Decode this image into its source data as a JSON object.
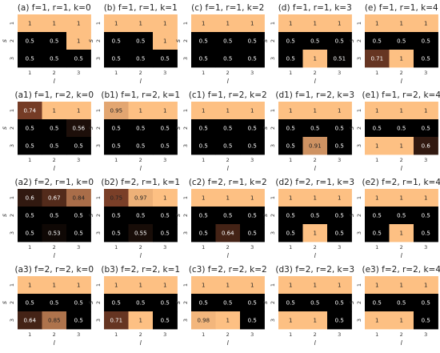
{
  "chart_data": {
    "type": "heatmap",
    "row_ticks": [
      "1",
      "2",
      "3"
    ],
    "col_ticks": [
      "1",
      "2",
      "3"
    ],
    "xlabel": "l",
    "ylabel": "s",
    "value_range": [
      0,
      1
    ],
    "colors": {
      "low": "#000000",
      "mid": "#7a3f28",
      "high": "#fdc083"
    },
    "panels": [
      {
        "title": "(a) f=1, r=1, k=0",
        "grid": [
          [
            "1",
            "1",
            "1"
          ],
          [
            "0.5",
            "0.5",
            "1"
          ],
          [
            "0.5",
            "0.5",
            "0.5"
          ]
        ]
      },
      {
        "title": "(b) f=1, r=1, k=1",
        "grid": [
          [
            "1",
            "1",
            "1"
          ],
          [
            "0.5",
            "0.5",
            "1"
          ],
          [
            "0.5",
            "0.5",
            "0.5"
          ]
        ]
      },
      {
        "title": "(c) f=1, r=1, k=2",
        "grid": [
          [
            "1",
            "1",
            "1"
          ],
          [
            "0.5",
            "0.5",
            "0.5"
          ],
          [
            "0.5",
            "0.5",
            "0.5"
          ]
        ]
      },
      {
        "title": "(d) f=1, r=1, k=3",
        "grid": [
          [
            "1",
            "1",
            "1"
          ],
          [
            "0.5",
            "0.5",
            "0.5"
          ],
          [
            "0.5",
            "1",
            "0.51"
          ]
        ]
      },
      {
        "title": "(e) f=1, r=1, k=4",
        "grid": [
          [
            "1",
            "1",
            "1"
          ],
          [
            "0.5",
            "0.5",
            "0.5"
          ],
          [
            "0.71",
            "1",
            "0.5"
          ]
        ]
      },
      {
        "title": "(a1) f=1, r=2, k=0",
        "grid": [
          [
            "0.74",
            "1",
            "1"
          ],
          [
            "0.5",
            "0.5",
            "0.56"
          ],
          [
            "0.5",
            "0.5",
            "0.5"
          ]
        ]
      },
      {
        "title": "(b1) f=1, r=2, k=1",
        "grid": [
          [
            "0.95",
            "1",
            "1"
          ],
          [
            "0.5",
            "0.5",
            "0.5"
          ],
          [
            "0.5",
            "0.5",
            "0.5"
          ]
        ]
      },
      {
        "title": "(c1) f=1, r=2, k=2",
        "grid": [
          [
            "1",
            "1",
            "1"
          ],
          [
            "0.5",
            "0.5",
            "0.5"
          ],
          [
            "0.5",
            "0.5",
            "0.5"
          ]
        ]
      },
      {
        "title": "(d1) f=1, r=2, k=3",
        "grid": [
          [
            "1",
            "1",
            "1"
          ],
          [
            "0.5",
            "0.5",
            "0.5"
          ],
          [
            "0.5",
            "0.91",
            "0.5"
          ]
        ]
      },
      {
        "title": "(e1) f=1, r=2, k=4",
        "grid": [
          [
            "1",
            "1",
            "1"
          ],
          [
            "0.5",
            "0.5",
            "0.5"
          ],
          [
            "1",
            "1",
            "0.6"
          ]
        ]
      },
      {
        "title": "(a2) f=2, r=1, k=0",
        "grid": [
          [
            "0.6",
            "0.67",
            "0.84"
          ],
          [
            "0.5",
            "0.5",
            "0.5"
          ],
          [
            "0.5",
            "0.53",
            "0.5"
          ]
        ]
      },
      {
        "title": "(b2) f=2, r=1, k=1",
        "grid": [
          [
            "0.75",
            "0.97",
            "1"
          ],
          [
            "0.5",
            "0.5",
            "0.5"
          ],
          [
            "0.5",
            "0.55",
            "0.5"
          ]
        ]
      },
      {
        "title": "(c2) f=2, r=1, k=2",
        "grid": [
          [
            "1",
            "1",
            "1"
          ],
          [
            "0.5",
            "0.5",
            "0.5"
          ],
          [
            "0.5",
            "0.64",
            "0.5"
          ]
        ]
      },
      {
        "title": "(d2) f=2, r=1, k=3",
        "grid": [
          [
            "1",
            "1",
            "1"
          ],
          [
            "0.5",
            "0.5",
            "0.5"
          ],
          [
            "0.5",
            "1",
            "0.5"
          ]
        ]
      },
      {
        "title": "(e2) f=2, r=1, k=4",
        "grid": [
          [
            "1",
            "1",
            "1"
          ],
          [
            "0.5",
            "0.5",
            "0.5"
          ],
          [
            "0.5",
            "1",
            "0.5"
          ]
        ]
      },
      {
        "title": "(a3) f=2, r=2, k=0",
        "grid": [
          [
            "1",
            "1",
            "1"
          ],
          [
            "0.5",
            "0.5",
            "0.5"
          ],
          [
            "0.64",
            "0.85",
            "0.5"
          ]
        ]
      },
      {
        "title": "(b3) f=2, r=2, k=1",
        "grid": [
          [
            "1",
            "1",
            "1"
          ],
          [
            "0.5",
            "0.5",
            "0.5"
          ],
          [
            "0.71",
            "1",
            "0.5"
          ]
        ]
      },
      {
        "title": "(c3) f=2, r=2, k=2",
        "grid": [
          [
            "1",
            "1",
            "1"
          ],
          [
            "0.5",
            "0.5",
            "0.5"
          ],
          [
            "0.98",
            "1",
            "0.5"
          ]
        ]
      },
      {
        "title": "(d3) f=2, r=2, k=3",
        "grid": [
          [
            "1",
            "1",
            "1"
          ],
          [
            "0.5",
            "0.5",
            "0.5"
          ],
          [
            "1",
            "1",
            "0.5"
          ]
        ]
      },
      {
        "title": "(e3) f=2, r=2, k=4",
        "grid": [
          [
            "1",
            "1",
            "1"
          ],
          [
            "0.5",
            "0.5",
            "0.5"
          ],
          [
            "1",
            "1",
            "0.5"
          ]
        ]
      }
    ]
  }
}
